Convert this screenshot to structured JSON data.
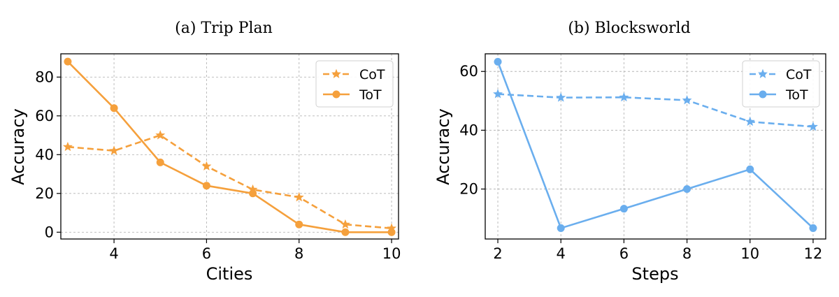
{
  "chart_data": [
    {
      "type": "line",
      "title": "(a) Trip Plan",
      "xlabel": "Cities",
      "ylabel": "Accuracy",
      "x": [
        3,
        4,
        5,
        6,
        7,
        8,
        9,
        10
      ],
      "xlim": [
        2.85,
        10.15
      ],
      "ylim": [
        -3.5,
        92
      ],
      "xticks": [
        4,
        6,
        8,
        10
      ],
      "yticks": [
        0,
        20,
        40,
        60,
        80
      ],
      "grid": true,
      "legend_position": "top-right",
      "color": "#f5a03c",
      "series": [
        {
          "name": "CoT",
          "marker": "star",
          "dash": true,
          "values": [
            44,
            42,
            50,
            34,
            22,
            18,
            4,
            2
          ]
        },
        {
          "name": "ToT",
          "marker": "circle",
          "dash": false,
          "values": [
            88,
            64,
            36,
            24,
            20,
            4,
            0,
            0
          ]
        }
      ]
    },
    {
      "type": "line",
      "title": "(b) Blocksworld",
      "xlabel": "Steps",
      "ylabel": "Accuracy",
      "x": [
        2,
        4,
        6,
        8,
        10,
        12
      ],
      "xlim": [
        1.6,
        12.4
      ],
      "ylim": [
        3,
        66
      ],
      "xticks": [
        2,
        4,
        6,
        8,
        10,
        12
      ],
      "yticks": [
        20,
        40,
        60
      ],
      "grid": true,
      "legend_position": "top-right",
      "color": "#6aaeee",
      "series": [
        {
          "name": "CoT",
          "marker": "star",
          "dash": true,
          "values": [
            52.3,
            51.1,
            51.2,
            50.2,
            42.9,
            41.2
          ]
        },
        {
          "name": "ToT",
          "marker": "circle",
          "dash": false,
          "values": [
            63.3,
            6.7,
            13.3,
            20,
            26.7,
            6.7
          ]
        }
      ]
    }
  ]
}
